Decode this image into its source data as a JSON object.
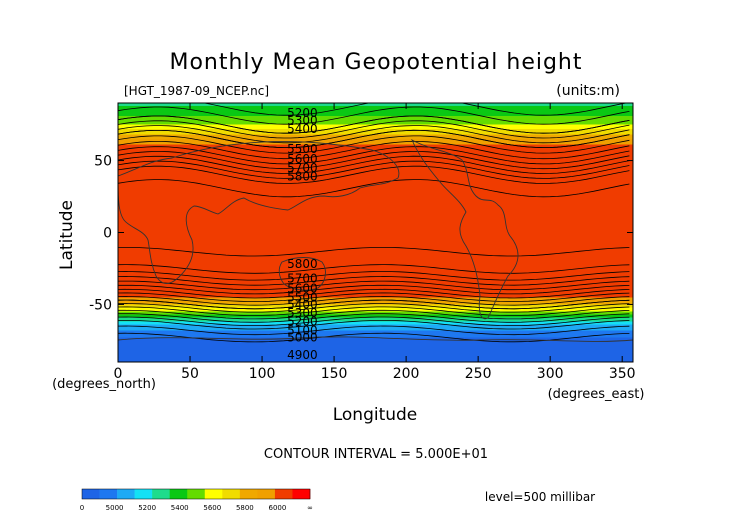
{
  "chart_data": {
    "type": "heatmap",
    "title": "Monthly Mean Geopotential height",
    "source_label": "[HGT_1987-09_NCEP.nc]",
    "units_label": "(units:m)",
    "xlabel": "Longitude",
    "ylabel": "Latitude",
    "x_unit_label": "(degrees_east)",
    "y_unit_label": "(degrees_north)",
    "xlim": [
      0,
      357.5
    ],
    "ylim": [
      -90,
      90
    ],
    "xticks": [
      0,
      50,
      100,
      150,
      200,
      250,
      300,
      350
    ],
    "yticks": [
      -50,
      0,
      50
    ],
    "contour_interval_text": "CONTOUR INTERVAL = 5.000E+01",
    "level_text": "level=500 millibar",
    "contour_labels": [
      {
        "value": "5200",
        "lon": 128,
        "lat": 83
      },
      {
        "value": "5300",
        "lon": 128,
        "lat": 78
      },
      {
        "value": "5400",
        "lon": 128,
        "lat": 72
      },
      {
        "value": "5500",
        "lon": 128,
        "lat": 58
      },
      {
        "value": "5600",
        "lon": 128,
        "lat": 51
      },
      {
        "value": "5700",
        "lon": 128,
        "lat": 45
      },
      {
        "value": "5800",
        "lon": 128,
        "lat": 39
      },
      {
        "value": "5800",
        "lon": 128,
        "lat": -22
      },
      {
        "value": "5700",
        "lon": 128,
        "lat": -32
      },
      {
        "value": "5600",
        "lon": 128,
        "lat": -39
      },
      {
        "value": "5500",
        "lon": 128,
        "lat": -45
      },
      {
        "value": "5400",
        "lon": 128,
        "lat": -50
      },
      {
        "value": "5300",
        "lon": 128,
        "lat": -56
      },
      {
        "value": "5200",
        "lon": 128,
        "lat": -62
      },
      {
        "value": "5100",
        "lon": 128,
        "lat": -68
      },
      {
        "value": "5000",
        "lon": 128,
        "lat": -73
      },
      {
        "value": "4900",
        "lon": 128,
        "lat": -85
      }
    ],
    "colorbar": {
      "labels": [
        "0",
        "5000",
        "5200",
        "5400",
        "5600",
        "5800",
        "6000",
        "∞"
      ],
      "colors": [
        "#1e64e6",
        "#1e78f0",
        "#1eaaf5",
        "#14e1f5",
        "#1edc8c",
        "#0ac814",
        "#64dc00",
        "#ffff00",
        "#f0dc00",
        "#f0a800",
        "#f0a000",
        "#f03c00",
        "#ff0000"
      ]
    },
    "zonal_profile": [
      {
        "lat": 90,
        "value": 5180
      },
      {
        "lat": 75,
        "value": 5300
      },
      {
        "lat": 65,
        "value": 5450
      },
      {
        "lat": 55,
        "value": 5580
      },
      {
        "lat": 45,
        "value": 5730
      },
      {
        "lat": 38,
        "value": 5830
      },
      {
        "lat": 20,
        "value": 5880
      },
      {
        "lat": 0,
        "value": 5870
      },
      {
        "lat": -20,
        "value": 5840
      },
      {
        "lat": -28,
        "value": 5780
      },
      {
        "lat": -35,
        "value": 5680
      },
      {
        "lat": -42,
        "value": 5560
      },
      {
        "lat": -50,
        "value": 5400
      },
      {
        "lat": -58,
        "value": 5230
      },
      {
        "lat": -65,
        "value": 5080
      },
      {
        "lat": -75,
        "value": 4980
      },
      {
        "lat": -90,
        "value": 4960
      }
    ]
  }
}
